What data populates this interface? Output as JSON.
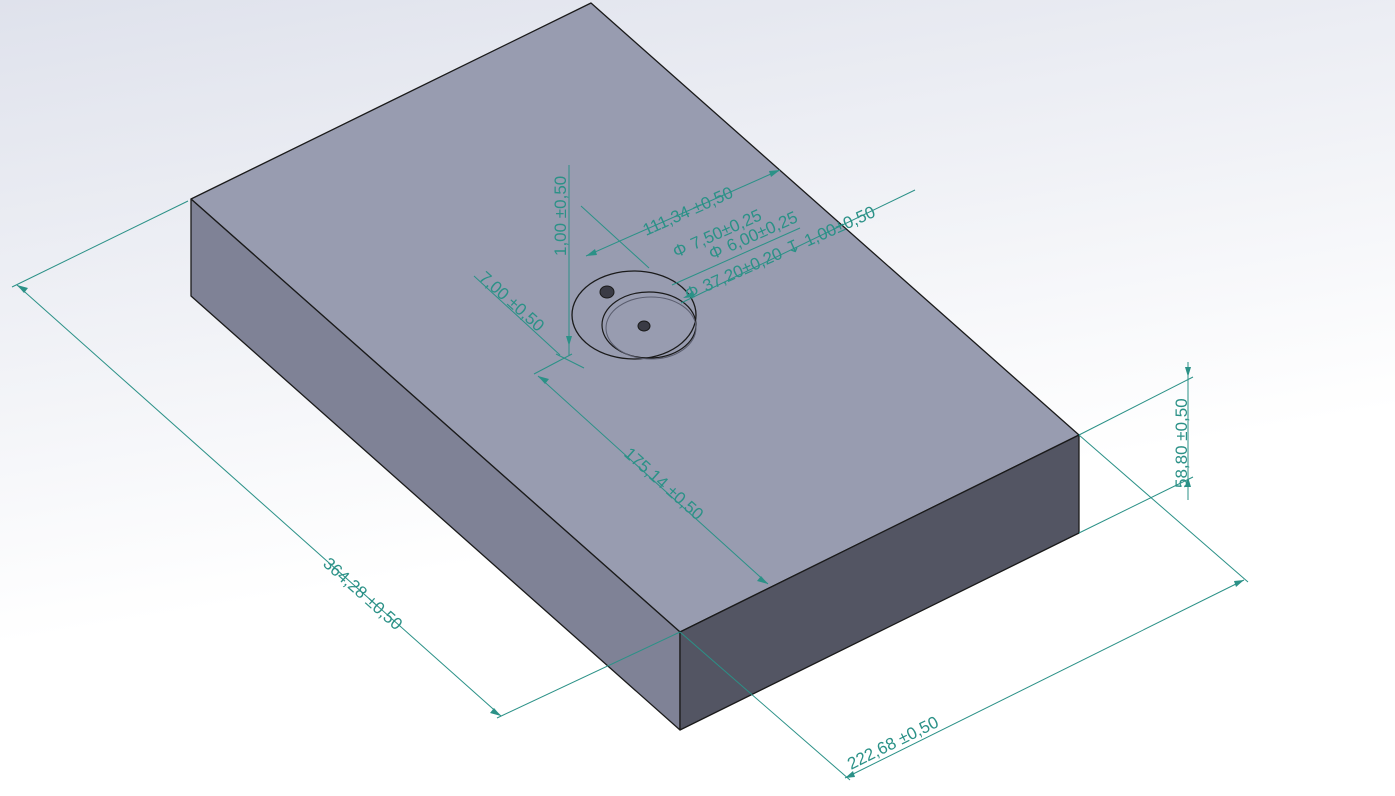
{
  "colors": {
    "background_top": "#dfe2ec",
    "background_bottom": "#ffffff",
    "face_top": "#989cb0",
    "face_left": "#7f8296",
    "face_front": "#535563",
    "dimension": "#2b9187",
    "edge": "#1a1a1a"
  },
  "dimensions": {
    "length": "364,28 ±0,50",
    "width": "222,68 ±0,50",
    "height": "58,80 ±0,50",
    "hole_x_offset": "175,14 ±0,50",
    "hole_y_offset": "111,34 ±0,50",
    "counterbore_small": "7,50±0,25",
    "counterbore_mid": "6,00±0,25",
    "counterbore_large": "37,20±0,20",
    "depth_symbol": "↧",
    "depth": "1,00±0,50",
    "step_depth": "1,00 ±0,50",
    "pin_offset": "7,00 ±0,50",
    "diameter_symbol": "Φ"
  }
}
